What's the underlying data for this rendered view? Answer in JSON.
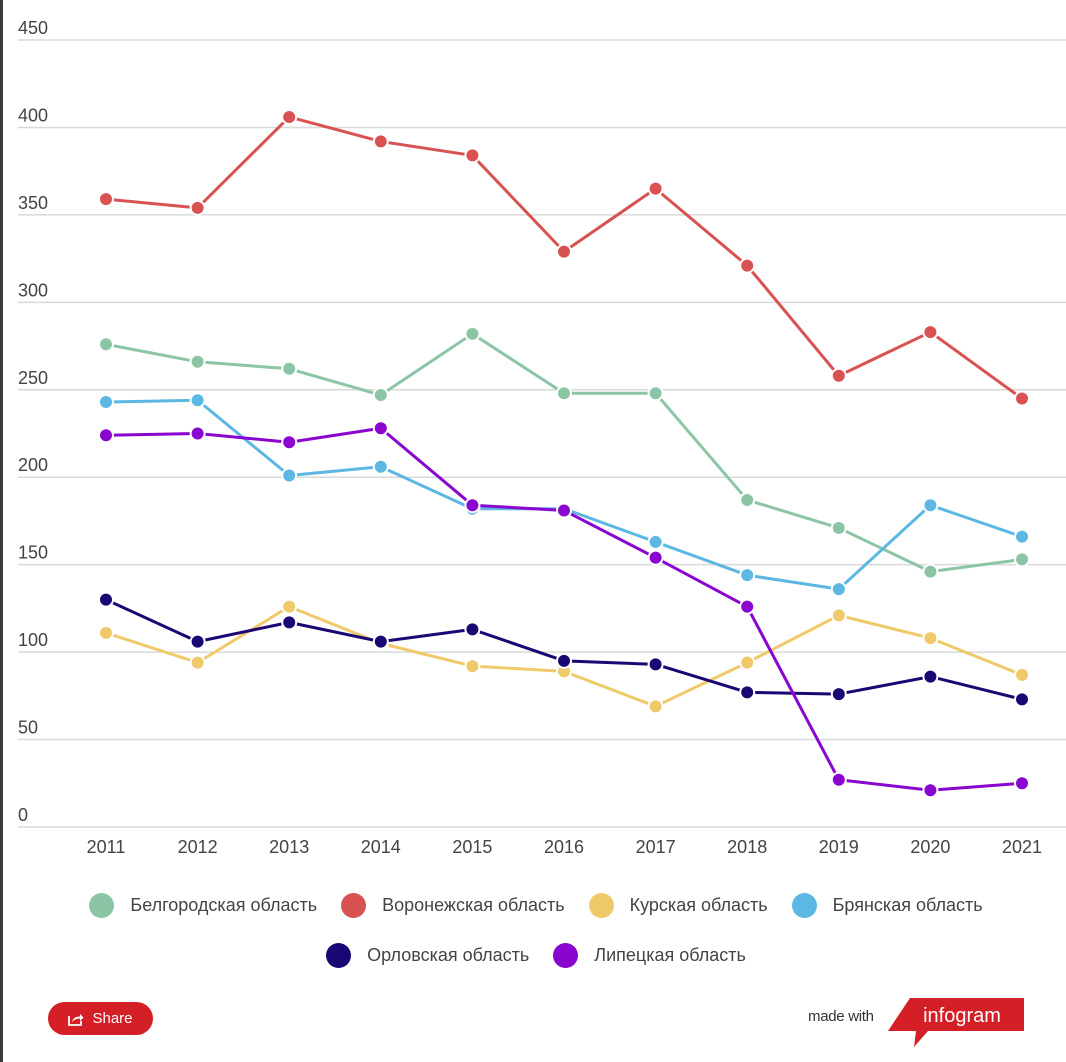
{
  "chart_data": {
    "type": "line",
    "title": "",
    "xlabel": "",
    "ylabel": "",
    "x": [
      "2011",
      "2012",
      "2013",
      "2014",
      "2015",
      "2016",
      "2017",
      "2018",
      "2019",
      "2020",
      "2021"
    ],
    "ylim": [
      0,
      450
    ],
    "yticks": [
      "0",
      "50",
      "100",
      "150",
      "200",
      "250",
      "300",
      "350",
      "400",
      "450"
    ],
    "grid": true,
    "legend_position": "bottom",
    "series": [
      {
        "name": "Белгородская область",
        "color": "#8cc5a5",
        "values": [
          276,
          266,
          262,
          247,
          282,
          248,
          248,
          187,
          171,
          146,
          153
        ]
      },
      {
        "name": "Воронежская область",
        "color": "#d95252",
        "values": [
          359,
          354,
          406,
          392,
          384,
          329,
          365,
          321,
          258,
          283,
          245
        ]
      },
      {
        "name": "Курская область",
        "color": "#f0c96b",
        "values": [
          111,
          94,
          126,
          105,
          92,
          89,
          69,
          94,
          121,
          108,
          87
        ]
      },
      {
        "name": "Брянская область",
        "color": "#5cb7e3",
        "values": [
          243,
          244,
          201,
          206,
          182,
          182,
          163,
          144,
          136,
          184,
          166
        ]
      },
      {
        "name": "Орловская область",
        "color": "#1a0773",
        "values": [
          130,
          106,
          117,
          106,
          113,
          95,
          93,
          77,
          76,
          86,
          73
        ]
      },
      {
        "name": "Липецкая область",
        "color": "#8a05cf",
        "values": [
          224,
          225,
          220,
          228,
          184,
          181,
          154,
          126,
          27,
          21,
          25
        ]
      }
    ]
  },
  "legend": {
    "row1": [
      0,
      1,
      2,
      3
    ],
    "row2": [
      4,
      5
    ]
  },
  "footer": {
    "share_label": "Share",
    "made_with_label": "made with",
    "brand_label": "infogram",
    "brand_color": "#d41f26"
  }
}
